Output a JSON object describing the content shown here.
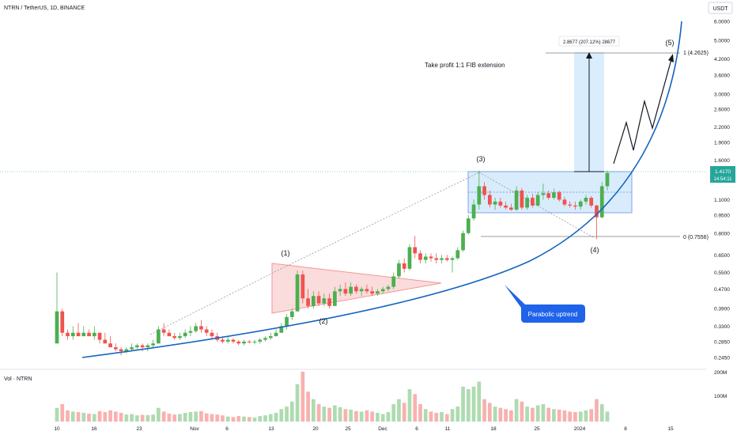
{
  "header": {
    "title": "NTRN / TetherUS, 1D, BINANCE",
    "currency_label": "USDT",
    "volume_label": "Vol · NTRN"
  },
  "colors": {
    "up": "#26a69a",
    "up_candle": "#4caf50",
    "down": "#ef5350",
    "curve": "#1565c0",
    "box_fill": "#bbdefb",
    "box_stroke": "#1e5bd8",
    "triangle_fill": "#f8c6c6",
    "triangle_stroke": "#ef5350",
    "price_tag": "#26a69a"
  },
  "annotations": {
    "wave1": "(1)",
    "wave2": "(2)",
    "wave3": "(3)",
    "wave4": "(4)",
    "wave5": "(5)",
    "take_profit": "Take profit 1:1 FIB extension",
    "measure": "2.8677 (207.12%) 28677",
    "fib_1": "1 (4.2625)",
    "fib_0": "0 (0.7556)",
    "parabolic": "Parabolic uptrend",
    "last_price": "1.4170",
    "countdown": "14:54:11"
  },
  "chart_data": {
    "type": "candlestick",
    "title": "NTRN / TetherUS, 1D, BINANCE",
    "y_scale": "log",
    "ylim": [
      0.22,
      6.5
    ],
    "y_ticks": [
      "6.0000",
      "5.0000",
      "4.2000",
      "3.6000",
      "3.0000",
      "2.6000",
      "2.2000",
      "1.9000",
      "1.6000",
      "1.1000",
      "0.9500",
      "0.8000",
      "0.6500",
      "0.5500",
      "0.4700",
      "0.3900",
      "0.3300",
      "0.2850",
      "0.2450"
    ],
    "x_ticks": [
      "10",
      "16",
      "23",
      "Nov",
      "6",
      "13",
      "20",
      "25",
      "Dec",
      "6",
      "11",
      "18",
      "25",
      "2024",
      "8",
      "15"
    ],
    "volume_ticks": [
      "200M",
      "100M"
    ],
    "last_price": 1.417,
    "fib_levels": [
      {
        "label": "1",
        "value": 4.2625
      },
      {
        "label": "0",
        "value": 0.7556
      }
    ],
    "candles": [
      {
        "o": 0.28,
        "h": 0.55,
        "l": 0.28,
        "c": 0.38,
        "v": 55
      },
      {
        "o": 0.38,
        "h": 0.39,
        "l": 0.3,
        "c": 0.31,
        "v": 70
      },
      {
        "o": 0.31,
        "h": 0.32,
        "l": 0.29,
        "c": 0.3,
        "v": 45
      },
      {
        "o": 0.3,
        "h": 0.33,
        "l": 0.29,
        "c": 0.31,
        "v": 40
      },
      {
        "o": 0.31,
        "h": 0.34,
        "l": 0.3,
        "c": 0.3,
        "v": 38
      },
      {
        "o": 0.3,
        "h": 0.33,
        "l": 0.3,
        "c": 0.31,
        "v": 35
      },
      {
        "o": 0.31,
        "h": 0.32,
        "l": 0.3,
        "c": 0.3,
        "v": 32
      },
      {
        "o": 0.3,
        "h": 0.33,
        "l": 0.29,
        "c": 0.31,
        "v": 30
      },
      {
        "o": 0.31,
        "h": 0.31,
        "l": 0.28,
        "c": 0.29,
        "v": 42
      },
      {
        "o": 0.29,
        "h": 0.31,
        "l": 0.28,
        "c": 0.28,
        "v": 38
      },
      {
        "o": 0.28,
        "h": 0.3,
        "l": 0.27,
        "c": 0.27,
        "v": 45
      },
      {
        "o": 0.27,
        "h": 0.28,
        "l": 0.26,
        "c": 0.265,
        "v": 40
      },
      {
        "o": 0.265,
        "h": 0.27,
        "l": 0.25,
        "c": 0.26,
        "v": 35
      },
      {
        "o": 0.26,
        "h": 0.27,
        "l": 0.255,
        "c": 0.265,
        "v": 28
      },
      {
        "o": 0.265,
        "h": 0.28,
        "l": 0.26,
        "c": 0.27,
        "v": 30
      },
      {
        "o": 0.27,
        "h": 0.28,
        "l": 0.265,
        "c": 0.275,
        "v": 25
      },
      {
        "o": 0.275,
        "h": 0.28,
        "l": 0.26,
        "c": 0.27,
        "v": 27
      },
      {
        "o": 0.27,
        "h": 0.28,
        "l": 0.26,
        "c": 0.275,
        "v": 26
      },
      {
        "o": 0.275,
        "h": 0.29,
        "l": 0.27,
        "c": 0.28,
        "v": 28
      },
      {
        "o": 0.28,
        "h": 0.33,
        "l": 0.28,
        "c": 0.32,
        "v": 55
      },
      {
        "o": 0.32,
        "h": 0.34,
        "l": 0.3,
        "c": 0.31,
        "v": 40
      },
      {
        "o": 0.31,
        "h": 0.32,
        "l": 0.3,
        "c": 0.3,
        "v": 32
      },
      {
        "o": 0.3,
        "h": 0.31,
        "l": 0.29,
        "c": 0.295,
        "v": 28
      },
      {
        "o": 0.295,
        "h": 0.31,
        "l": 0.29,
        "c": 0.3,
        "v": 30
      },
      {
        "o": 0.3,
        "h": 0.32,
        "l": 0.295,
        "c": 0.31,
        "v": 35
      },
      {
        "o": 0.31,
        "h": 0.33,
        "l": 0.3,
        "c": 0.315,
        "v": 38
      },
      {
        "o": 0.315,
        "h": 0.34,
        "l": 0.31,
        "c": 0.33,
        "v": 40
      },
      {
        "o": 0.33,
        "h": 0.35,
        "l": 0.31,
        "c": 0.32,
        "v": 42
      },
      {
        "o": 0.32,
        "h": 0.33,
        "l": 0.3,
        "c": 0.31,
        "v": 33
      },
      {
        "o": 0.31,
        "h": 0.32,
        "l": 0.29,
        "c": 0.3,
        "v": 30
      },
      {
        "o": 0.3,
        "h": 0.31,
        "l": 0.285,
        "c": 0.29,
        "v": 28
      },
      {
        "o": 0.29,
        "h": 0.3,
        "l": 0.28,
        "c": 0.285,
        "v": 25
      },
      {
        "o": 0.285,
        "h": 0.3,
        "l": 0.28,
        "c": 0.29,
        "v": 20
      },
      {
        "o": 0.29,
        "h": 0.295,
        "l": 0.28,
        "c": 0.285,
        "v": 18
      },
      {
        "o": 0.285,
        "h": 0.29,
        "l": 0.275,
        "c": 0.28,
        "v": 22
      },
      {
        "o": 0.28,
        "h": 0.29,
        "l": 0.275,
        "c": 0.285,
        "v": 20
      },
      {
        "o": 0.285,
        "h": 0.29,
        "l": 0.28,
        "c": 0.283,
        "v": 18
      },
      {
        "o": 0.283,
        "h": 0.29,
        "l": 0.278,
        "c": 0.285,
        "v": 16
      },
      {
        "o": 0.285,
        "h": 0.295,
        "l": 0.28,
        "c": 0.29,
        "v": 22
      },
      {
        "o": 0.29,
        "h": 0.3,
        "l": 0.285,
        "c": 0.295,
        "v": 25
      },
      {
        "o": 0.295,
        "h": 0.31,
        "l": 0.29,
        "c": 0.3,
        "v": 30
      },
      {
        "o": 0.3,
        "h": 0.32,
        "l": 0.3,
        "c": 0.31,
        "v": 35
      },
      {
        "o": 0.31,
        "h": 0.34,
        "l": 0.31,
        "c": 0.33,
        "v": 50
      },
      {
        "o": 0.33,
        "h": 0.37,
        "l": 0.32,
        "c": 0.36,
        "v": 60
      },
      {
        "o": 0.36,
        "h": 0.39,
        "l": 0.35,
        "c": 0.38,
        "v": 80
      },
      {
        "o": 0.38,
        "h": 0.56,
        "l": 0.38,
        "c": 0.54,
        "v": 150
      },
      {
        "o": 0.54,
        "h": 0.56,
        "l": 0.41,
        "c": 0.43,
        "v": 200
      },
      {
        "o": 0.43,
        "h": 0.47,
        "l": 0.39,
        "c": 0.4,
        "v": 120
      },
      {
        "o": 0.4,
        "h": 0.46,
        "l": 0.39,
        "c": 0.44,
        "v": 90
      },
      {
        "o": 0.44,
        "h": 0.46,
        "l": 0.4,
        "c": 0.41,
        "v": 70
      },
      {
        "o": 0.41,
        "h": 0.45,
        "l": 0.4,
        "c": 0.43,
        "v": 60
      },
      {
        "o": 0.43,
        "h": 0.45,
        "l": 0.39,
        "c": 0.4,
        "v": 55
      },
      {
        "o": 0.4,
        "h": 0.48,
        "l": 0.4,
        "c": 0.46,
        "v": 65
      },
      {
        "o": 0.46,
        "h": 0.49,
        "l": 0.44,
        "c": 0.47,
        "v": 58
      },
      {
        "o": 0.47,
        "h": 0.5,
        "l": 0.44,
        "c": 0.45,
        "v": 50
      },
      {
        "o": 0.45,
        "h": 0.5,
        "l": 0.44,
        "c": 0.48,
        "v": 48
      },
      {
        "o": 0.48,
        "h": 0.49,
        "l": 0.45,
        "c": 0.46,
        "v": 42
      },
      {
        "o": 0.46,
        "h": 0.48,
        "l": 0.44,
        "c": 0.47,
        "v": 40
      },
      {
        "o": 0.47,
        "h": 0.49,
        "l": 0.45,
        "c": 0.46,
        "v": 45
      },
      {
        "o": 0.46,
        "h": 0.48,
        "l": 0.44,
        "c": 0.45,
        "v": 40
      },
      {
        "o": 0.45,
        "h": 0.47,
        "l": 0.44,
        "c": 0.46,
        "v": 35
      },
      {
        "o": 0.46,
        "h": 0.48,
        "l": 0.45,
        "c": 0.47,
        "v": 30
      },
      {
        "o": 0.47,
        "h": 0.49,
        "l": 0.46,
        "c": 0.48,
        "v": 38
      },
      {
        "o": 0.48,
        "h": 0.55,
        "l": 0.47,
        "c": 0.53,
        "v": 70
      },
      {
        "o": 0.53,
        "h": 0.62,
        "l": 0.52,
        "c": 0.6,
        "v": 90
      },
      {
        "o": 0.6,
        "h": 0.63,
        "l": 0.55,
        "c": 0.57,
        "v": 75
      },
      {
        "o": 0.57,
        "h": 0.72,
        "l": 0.56,
        "c": 0.7,
        "v": 130
      },
      {
        "o": 0.7,
        "h": 0.78,
        "l": 0.63,
        "c": 0.66,
        "v": 110
      },
      {
        "o": 0.66,
        "h": 0.68,
        "l": 0.6,
        "c": 0.62,
        "v": 70
      },
      {
        "o": 0.62,
        "h": 0.66,
        "l": 0.6,
        "c": 0.64,
        "v": 50
      },
      {
        "o": 0.64,
        "h": 0.66,
        "l": 0.61,
        "c": 0.63,
        "v": 40
      },
      {
        "o": 0.63,
        "h": 0.66,
        "l": 0.6,
        "c": 0.62,
        "v": 35
      },
      {
        "o": 0.62,
        "h": 0.65,
        "l": 0.6,
        "c": 0.63,
        "v": 38
      },
      {
        "o": 0.63,
        "h": 0.65,
        "l": 0.61,
        "c": 0.62,
        "v": 30
      },
      {
        "o": 0.62,
        "h": 0.64,
        "l": 0.55,
        "c": 0.63,
        "v": 50
      },
      {
        "o": 0.63,
        "h": 0.7,
        "l": 0.62,
        "c": 0.68,
        "v": 60
      },
      {
        "o": 0.68,
        "h": 0.82,
        "l": 0.67,
        "c": 0.8,
        "v": 140
      },
      {
        "o": 0.8,
        "h": 0.95,
        "l": 0.79,
        "c": 0.92,
        "v": 130
      },
      {
        "o": 0.92,
        "h": 1.1,
        "l": 0.9,
        "c": 1.05,
        "v": 140
      },
      {
        "o": 1.05,
        "h": 1.45,
        "l": 1.0,
        "c": 1.25,
        "v": 160
      },
      {
        "o": 1.25,
        "h": 1.3,
        "l": 1.1,
        "c": 1.15,
        "v": 90
      },
      {
        "o": 1.15,
        "h": 1.2,
        "l": 1.02,
        "c": 1.05,
        "v": 75
      },
      {
        "o": 1.05,
        "h": 1.12,
        "l": 1.0,
        "c": 1.08,
        "v": 60
      },
      {
        "o": 1.08,
        "h": 1.12,
        "l": 1.02,
        "c": 1.04,
        "v": 55
      },
      {
        "o": 1.04,
        "h": 1.08,
        "l": 1.0,
        "c": 1.02,
        "v": 50
      },
      {
        "o": 1.02,
        "h": 1.06,
        "l": 0.99,
        "c": 1.0,
        "v": 45
      },
      {
        "o": 1.0,
        "h": 1.25,
        "l": 0.99,
        "c": 1.2,
        "v": 90
      },
      {
        "o": 1.2,
        "h": 1.23,
        "l": 1.0,
        "c": 1.02,
        "v": 80
      },
      {
        "o": 1.02,
        "h": 1.15,
        "l": 1.0,
        "c": 1.12,
        "v": 60
      },
      {
        "o": 1.12,
        "h": 1.16,
        "l": 1.02,
        "c": 1.04,
        "v": 55
      },
      {
        "o": 1.04,
        "h": 1.18,
        "l": 1.03,
        "c": 1.15,
        "v": 65
      },
      {
        "o": 1.15,
        "h": 1.28,
        "l": 1.1,
        "c": 1.17,
        "v": 70
      },
      {
        "o": 1.17,
        "h": 1.2,
        "l": 1.1,
        "c": 1.12,
        "v": 55
      },
      {
        "o": 1.12,
        "h": 1.22,
        "l": 1.1,
        "c": 1.18,
        "v": 50
      },
      {
        "o": 1.18,
        "h": 1.2,
        "l": 1.08,
        "c": 1.1,
        "v": 48
      },
      {
        "o": 1.1,
        "h": 1.13,
        "l": 1.03,
        "c": 1.05,
        "v": 45
      },
      {
        "o": 1.05,
        "h": 1.08,
        "l": 1.02,
        "c": 1.04,
        "v": 40
      },
      {
        "o": 1.04,
        "h": 1.08,
        "l": 1.0,
        "c": 1.03,
        "v": 38
      },
      {
        "o": 1.03,
        "h": 1.1,
        "l": 1.0,
        "c": 1.08,
        "v": 40
      },
      {
        "o": 1.08,
        "h": 1.15,
        "l": 1.05,
        "c": 1.12,
        "v": 45
      },
      {
        "o": 1.12,
        "h": 1.14,
        "l": 1.02,
        "c": 1.04,
        "v": 50
      },
      {
        "o": 1.04,
        "h": 1.05,
        "l": 0.7556,
        "c": 0.93,
        "v": 90
      },
      {
        "o": 0.93,
        "h": 1.3,
        "l": 0.92,
        "c": 1.25,
        "v": 70
      },
      {
        "o": 1.25,
        "h": 1.45,
        "l": 1.2,
        "c": 1.417,
        "v": 40
      }
    ]
  }
}
